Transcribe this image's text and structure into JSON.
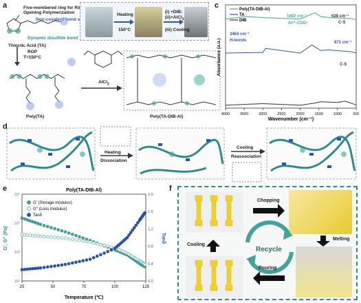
{
  "panel_a": {
    "letter": "a",
    "ring_title": "Five-membered ring for Ring-Opening Polymerization",
    "bond_site": "Non-covalent bond site",
    "disulfide": "Dynamic disulfide bond",
    "acid": "Thioctic Acid (TA)",
    "rop": "ROP",
    "temp": "T=150°C",
    "catalyst": "AlCl",
    "catalyst_sub": "3",
    "poly_ta": "Poly(TA)",
    "poly_product": "Poly(TA-DIB-Al)"
  },
  "panel_b": {
    "letter": "b",
    "heating": "Heating",
    "heating_temp": "150°C",
    "step_i": "(i) +DIB;",
    "step_ii": "(ii)+AlCl",
    "step_ii_sub": "3",
    "step_iii": "(iii) Cooling"
  },
  "panel_c": {
    "letter": "c",
    "legend": [
      "Poly(TA-DIB-Al)",
      "TA",
      "DIB"
    ],
    "legend_colors": [
      "#3fa59a",
      "#2a56b8",
      "#333333"
    ],
    "annotations": [
      "1602 cm⁻¹",
      "Al³⁺-COO⁻",
      "628 cm⁻¹",
      "C-S",
      "3464 cm⁻¹",
      "H-bonds",
      "671 cm⁻¹",
      "C-S"
    ],
    "xlabel": "Wavenumber (cm⁻¹)",
    "ylabel": "Absorbance (a.u.)",
    "xticks": [
      "4000",
      "3500",
      "3000",
      "2500",
      "2000",
      "1500",
      "1000",
      "500"
    ]
  },
  "panel_d": {
    "letter": "d",
    "heating": "Heating",
    "dissociation": "Dissociation",
    "cooling": "Cooling",
    "reassociation": "Reassociation"
  },
  "panel_e": {
    "letter": "e",
    "title": "Poly(TA-DIB-Al)",
    "legend": [
      "G' (Storage modulus)",
      "G'' (Loss modulus)",
      "Tanδ"
    ],
    "ylabel_left": "G', G'' (Pa)",
    "ylabel_right": "Tanδ",
    "xlabel": "Temperature (℃)",
    "xticks": [
      "25",
      "50",
      "75",
      "100",
      "125"
    ],
    "yticks_left": [
      "10²",
      "10³",
      "10⁴",
      "10⁵"
    ],
    "yticks_right": [
      "0.0",
      "0.4",
      "0.8",
      "1.2",
      "1.6",
      "2.0"
    ]
  },
  "panel_f": {
    "letter": "f",
    "chopping": "Chopping",
    "melting": "Melting",
    "pouring": "Pouring",
    "cooling": "Cooling",
    "recycle": "Recycle"
  },
  "chart_data": [
    {
      "type": "line",
      "ylabel": "Absorbance (a.u.)",
      "xlabel": "Wavenumber (cm⁻¹)",
      "xlim": [
        4000,
        500
      ],
      "series": [
        {
          "name": "Poly(TA-DIB-Al)",
          "x": [
            4000,
            3464,
            2930,
            2000,
            1602,
            1450,
            1200,
            671,
            500
          ],
          "values": [
            0.72,
            0.8,
            0.76,
            0.72,
            0.92,
            0.8,
            0.76,
            0.74,
            0.7
          ]
        },
        {
          "name": "TA",
          "x": [
            4000,
            3000,
            2930,
            2000,
            1690,
            1450,
            1250,
            628,
            500
          ],
          "values": [
            0.4,
            0.42,
            0.55,
            0.4,
            0.66,
            0.48,
            0.5,
            0.44,
            0.4
          ]
        },
        {
          "name": "DIB",
          "x": [
            4000,
            3000,
            2000,
            1600,
            1450,
            1000,
            800,
            500
          ],
          "values": [
            0.05,
            0.1,
            0.05,
            0.12,
            0.16,
            0.14,
            0.18,
            0.06
          ]
        }
      ]
    },
    {
      "type": "scatter",
      "title": "Poly(TA-DIB-Al)",
      "xlabel": "Temperature (℃)",
      "xlim": [
        25,
        125
      ],
      "series": [
        {
          "name": "G' (Storage modulus)",
          "x": [
            25,
            40,
            60,
            80,
            100,
            110,
            120,
            125
          ],
          "values": [
            15000,
            9000,
            5000,
            2500,
            1200,
            800,
            400,
            300
          ]
        },
        {
          "name": "G'' (Loss modulus)",
          "x": [
            25,
            40,
            60,
            80,
            100,
            110,
            120,
            125
          ],
          "values": [
            4000,
            3500,
            3000,
            2200,
            1400,
            900,
            500,
            350
          ]
        },
        {
          "name": "Tanδ",
          "x": [
            25,
            40,
            60,
            80,
            100,
            110,
            120,
            125
          ],
          "values": [
            0.26,
            0.3,
            0.38,
            0.5,
            0.75,
            1.0,
            1.4,
            1.6
          ]
        }
      ]
    }
  ]
}
